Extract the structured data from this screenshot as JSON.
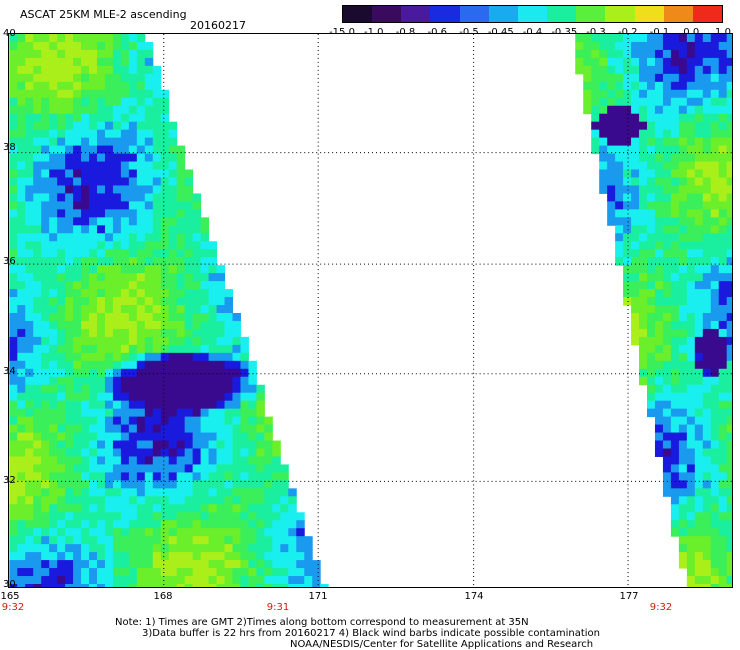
{
  "header": {
    "title": "ASCAT 25KM MLE-2 ascending",
    "date": "20160217"
  },
  "colorbar": {
    "labels": [
      "-15.0",
      "-1.0",
      "-0.8",
      "-0.6",
      "-0.5",
      "-0.45",
      "-0.4",
      "-0.35",
      "-0.3",
      "-0.2",
      "-0.1",
      "0.0",
      "1.0"
    ],
    "colors": [
      "#1a0a2e",
      "#3a0a5e",
      "#4a1a9e",
      "#1a2adf",
      "#2a6aef",
      "#1aaaef",
      "#1aeaef",
      "#1aef9f",
      "#5aef3a",
      "#aaef1a",
      "#efdf1a",
      "#ef8a1a",
      "#ef2a1a"
    ]
  },
  "map": {
    "lat_labels": [
      "40",
      "38",
      "36",
      "34",
      "32",
      "30"
    ],
    "lon_labels": [
      "165",
      "168",
      "171",
      "174",
      "177"
    ],
    "times": [
      "9:32",
      "9:31",
      "9:32"
    ]
  },
  "footer": {
    "line1": "Note: 1) Times are GMT 2)Times along bottom correspond to measurement at 35N",
    "line2": "3)Data buffer is 22 hrs from 20160217 4) Black wind barbs indicate possible contamination",
    "line3": "NOAA/NESDIS/Center for Satellite Applications and Research"
  }
}
